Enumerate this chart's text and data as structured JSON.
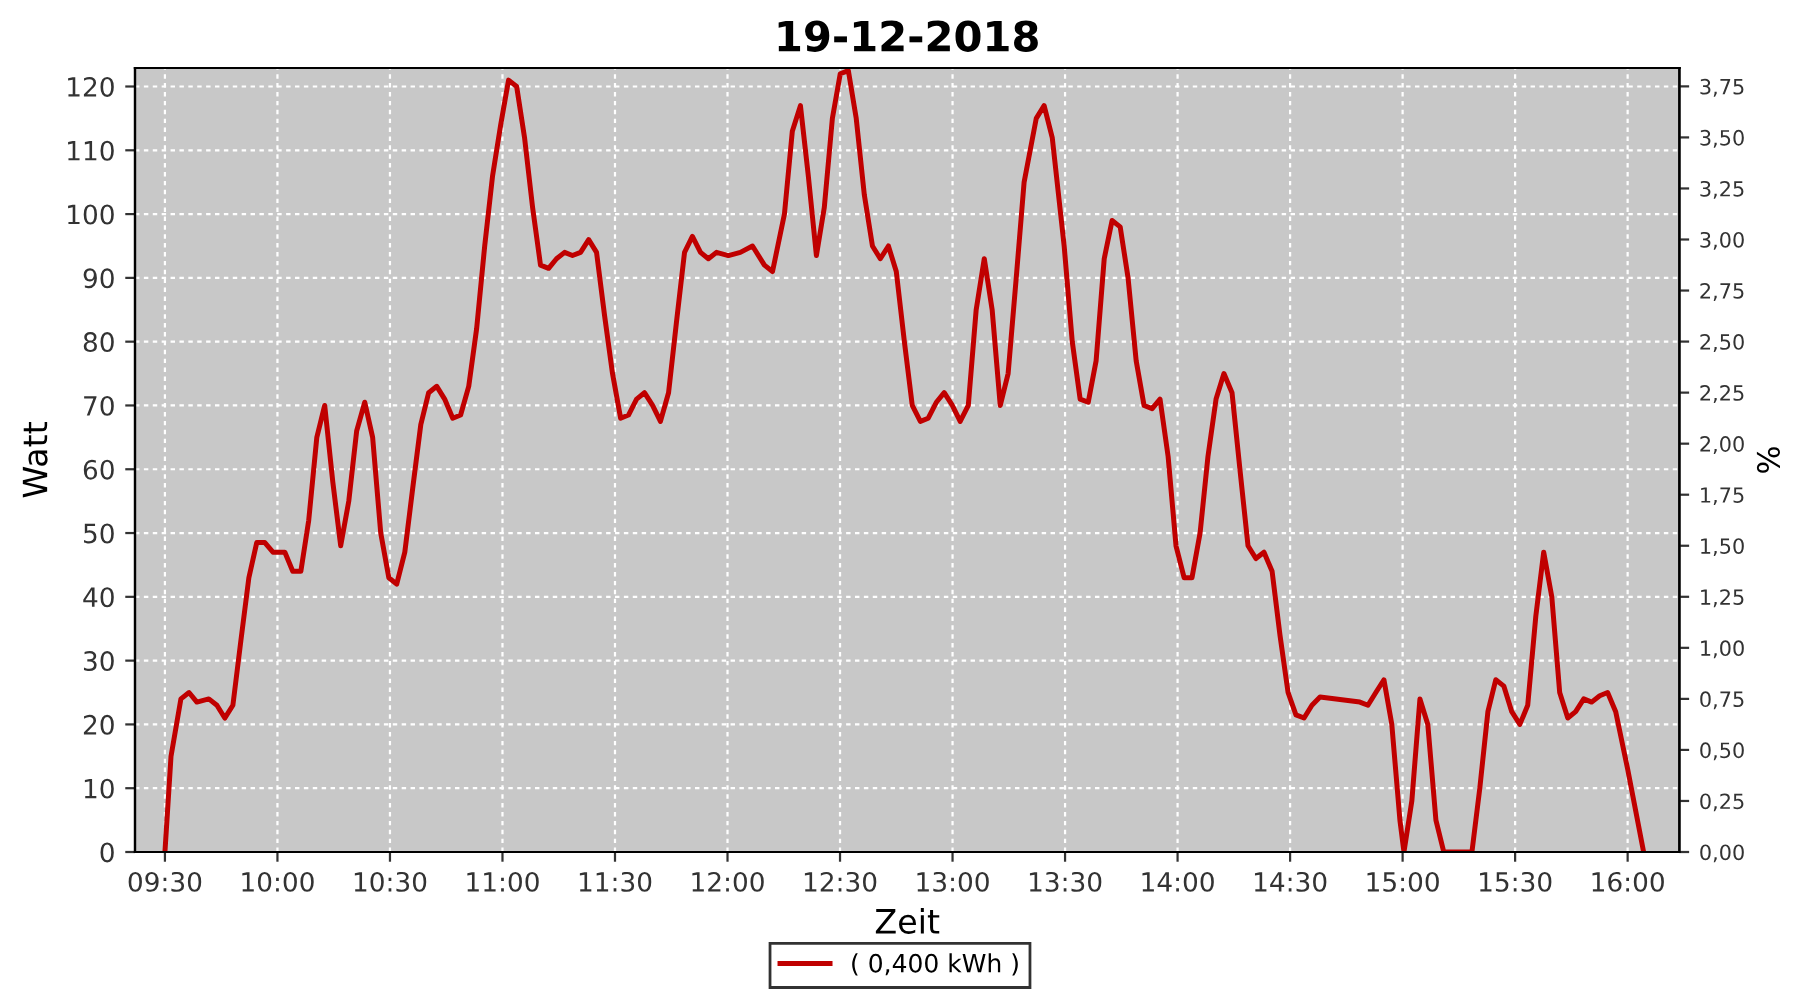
{
  "chart_data": {
    "type": "line",
    "title": "19-12-2018",
    "xlabel": "Zeit",
    "ylabel": "Watt",
    "y2label": "%",
    "xlim": [
      9.367,
      16.23
    ],
    "xticks": [
      {
        "value": 9.5,
        "label": "09:30"
      },
      {
        "value": 10.0,
        "label": "10:00"
      },
      {
        "value": 10.5,
        "label": "10:30"
      },
      {
        "value": 11.0,
        "label": "11:00"
      },
      {
        "value": 11.5,
        "label": "11:30"
      },
      {
        "value": 12.0,
        "label": "12:00"
      },
      {
        "value": 12.5,
        "label": "12:30"
      },
      {
        "value": 13.0,
        "label": "13:00"
      },
      {
        "value": 13.5,
        "label": "13:30"
      },
      {
        "value": 14.0,
        "label": "14:00"
      },
      {
        "value": 14.5,
        "label": "14:30"
      },
      {
        "value": 15.0,
        "label": "15:00"
      },
      {
        "value": 15.5,
        "label": "15:30"
      },
      {
        "value": 16.0,
        "label": "16:00"
      }
    ],
    "ylim": [
      0,
      122.9
    ],
    "yticks": [
      0,
      10,
      20,
      30,
      40,
      50,
      60,
      70,
      80,
      90,
      100,
      110,
      120
    ],
    "y2lim": [
      0,
      3.84
    ],
    "y2ticks": [
      {
        "value": 0,
        "label": "0,00"
      },
      {
        "value": 0.25,
        "label": "0,25"
      },
      {
        "value": 0.5,
        "label": "0,50"
      },
      {
        "value": 0.75,
        "label": "0,75"
      },
      {
        "value": 1.0,
        "label": "1,00"
      },
      {
        "value": 1.25,
        "label": "1,25"
      },
      {
        "value": 1.5,
        "label": "1,50"
      },
      {
        "value": 1.75,
        "label": "1,75"
      },
      {
        "value": 2.0,
        "label": "2,00"
      },
      {
        "value": 2.25,
        "label": "2,25"
      },
      {
        "value": 2.5,
        "label": "2,50"
      },
      {
        "value": 2.75,
        "label": "2,75"
      },
      {
        "value": 3.0,
        "label": "3,00"
      },
      {
        "value": 3.25,
        "label": "3,25"
      },
      {
        "value": 3.5,
        "label": "3,50"
      },
      {
        "value": 3.75,
        "label": "3,75"
      }
    ],
    "grid": true,
    "legend": "bottom",
    "marker": "none",
    "line_style": "solid",
    "series": [
      {
        "name": "( 0,400 kWh )",
        "color": "#c00000",
        "x": [
          9.5,
          9.527,
          9.571,
          9.607,
          9.642,
          9.695,
          9.731,
          9.766,
          9.802,
          9.837,
          9.873,
          9.908,
          9.944,
          9.98,
          10.033,
          10.068,
          10.104,
          10.139,
          10.175,
          10.21,
          10.246,
          10.281,
          10.317,
          10.352,
          10.388,
          10.423,
          10.459,
          10.495,
          10.53,
          10.566,
          10.601,
          10.637,
          10.672,
          10.708,
          10.743,
          10.779,
          10.814,
          10.85,
          10.885,
          10.921,
          10.956,
          10.992,
          11.027,
          11.063,
          11.098,
          11.134,
          11.169,
          11.205,
          11.24,
          11.276,
          11.311,
          11.347,
          11.383,
          11.418,
          11.454,
          11.489,
          11.525,
          11.56,
          11.596,
          11.631,
          11.667,
          11.702,
          11.738,
          11.773,
          11.809,
          11.844,
          11.88,
          11.915,
          11.951,
          12.004,
          12.057,
          12.111,
          12.164,
          12.2,
          12.253,
          12.288,
          12.324,
          12.359,
          12.395,
          12.43,
          12.466,
          12.501,
          12.537,
          12.572,
          12.608,
          12.644,
          12.679,
          12.715,
          12.75,
          12.786,
          12.821,
          12.857,
          12.892,
          12.928,
          12.963,
          12.999,
          13.034,
          13.07,
          13.105,
          13.141,
          13.176,
          13.212,
          13.247,
          13.283,
          13.318,
          13.372,
          13.407,
          13.443,
          13.496,
          13.532,
          13.567,
          13.603,
          13.638,
          13.674,
          13.709,
          13.745,
          13.78,
          13.816,
          13.851,
          13.887,
          13.922,
          13.958,
          13.993,
          14.029,
          14.064,
          14.1,
          14.135,
          14.171,
          14.206,
          14.242,
          14.277,
          14.313,
          14.348,
          14.384,
          14.42,
          14.455,
          14.491,
          14.526,
          14.562,
          14.597,
          14.633,
          14.704,
          14.81,
          14.846,
          14.881,
          14.917,
          14.952,
          14.988,
          15.006,
          15.041,
          15.077,
          15.112,
          15.148,
          15.183,
          15.254,
          15.308,
          15.343,
          15.379,
          15.414,
          15.45,
          15.485,
          15.521,
          15.556,
          15.592,
          15.627,
          15.663,
          15.698,
          15.734,
          15.769,
          15.805,
          15.84,
          15.876,
          15.911,
          15.947,
          16.0,
          16.071
        ],
        "values": [
          0,
          15,
          24,
          25,
          23.5,
          24,
          23,
          21,
          23,
          33,
          43,
          48.5,
          48.5,
          47,
          47,
          44,
          44,
          52,
          65,
          70,
          58,
          48,
          55,
          66,
          70.5,
          65,
          50,
          43,
          42,
          47,
          57,
          67,
          72,
          73,
          71,
          68,
          68.5,
          73,
          82,
          95,
          106,
          114,
          121,
          120,
          112,
          101,
          92,
          91.5,
          93,
          94,
          93.5,
          94,
          96,
          94,
          84,
          75,
          68,
          68.5,
          71,
          72,
          70,
          67.5,
          72,
          83,
          94,
          96.5,
          94,
          93,
          94,
          93.5,
          94,
          95,
          92,
          91,
          100,
          113,
          117,
          106,
          93.5,
          101,
          115,
          122,
          122.5,
          115,
          103,
          95,
          93,
          95,
          91,
          80,
          70,
          67.5,
          68,
          70.5,
          72,
          70,
          67.5,
          70,
          85,
          93,
          85,
          70,
          75,
          90,
          105,
          115,
          117,
          112,
          95,
          80,
          71,
          70.5,
          77,
          93,
          99,
          98,
          90,
          77,
          70,
          69.5,
          71,
          62,
          48,
          43,
          43,
          50,
          62,
          71,
          75,
          72,
          60,
          48,
          46,
          47,
          44,
          34,
          25,
          21.5,
          21,
          23,
          24.3,
          24,
          23.5,
          23,
          25,
          27,
          20,
          5,
          0,
          8,
          24,
          20,
          5,
          0,
          0,
          0,
          10,
          22,
          27,
          26,
          22,
          20,
          23,
          37,
          47,
          40,
          25,
          21,
          22,
          24,
          23.5,
          24.5,
          25,
          22,
          13,
          0
        ]
      }
    ]
  }
}
